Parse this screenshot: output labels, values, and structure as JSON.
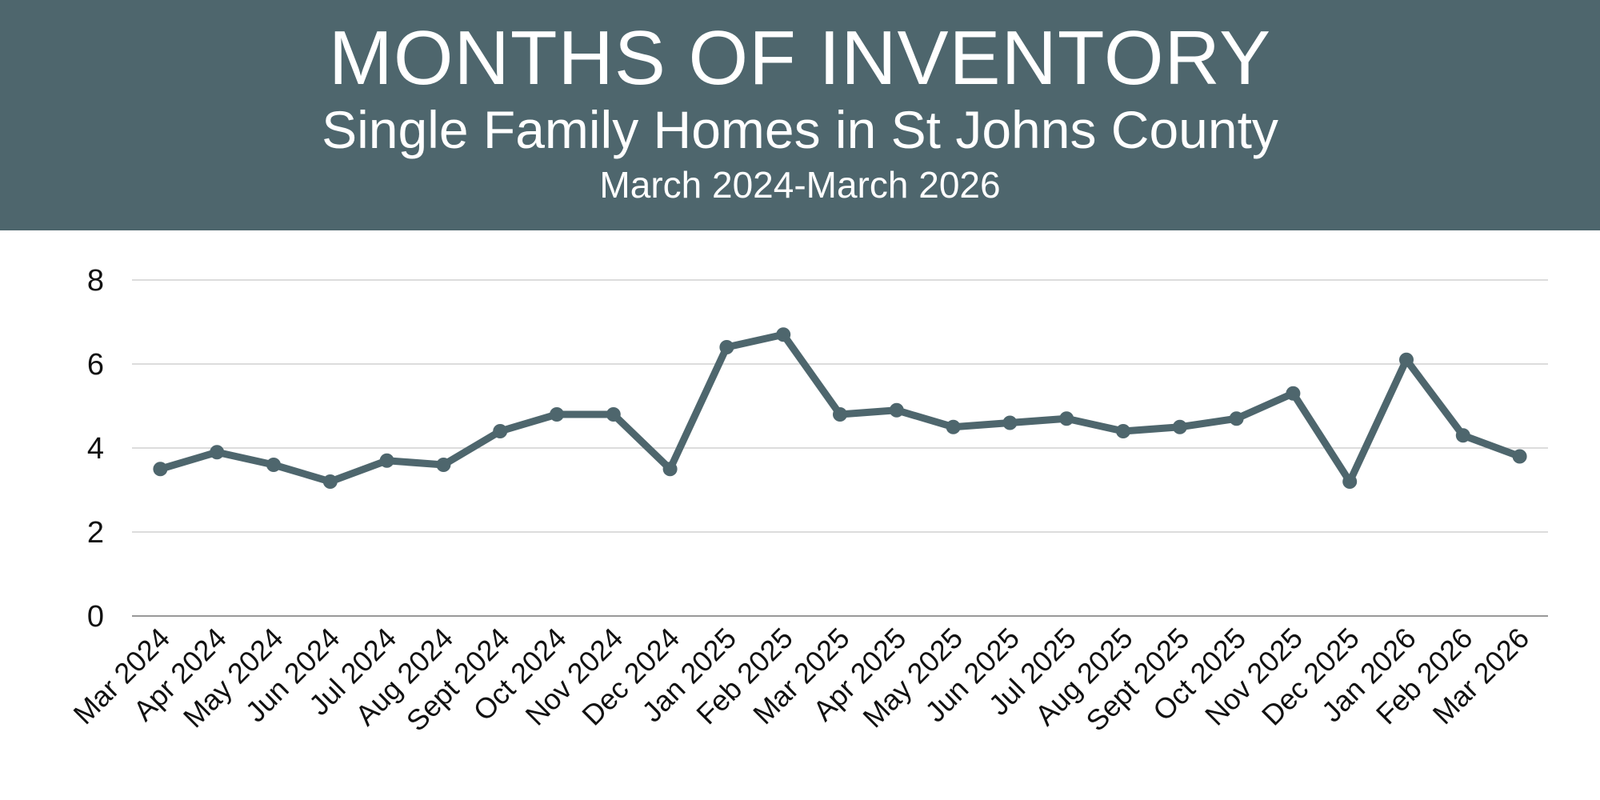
{
  "header": {
    "title": "MONTHS OF INVENTORY",
    "subtitle": "Single Family Homes in St Johns County",
    "date_range": "March 2024-March 2026"
  },
  "colors": {
    "header_background": "#4e666d",
    "header_text": "#ffffff",
    "series_line": "#4e666d",
    "gridline": "#d0d0d0",
    "axis_line": "#999999"
  },
  "chart_data": {
    "type": "line",
    "title": "MONTHS OF INVENTORY",
    "subtitle": "Single Family Homes in St Johns County",
    "xlabel": "",
    "ylabel": "",
    "ylim": [
      0,
      8
    ],
    "yticks": [
      0,
      2,
      4,
      6,
      8
    ],
    "grid": true,
    "legend": "none",
    "categories": [
      "Mar 2024",
      "Apr 2024",
      "May 2024",
      "Jun 2024",
      "Jul 2024",
      "Aug 2024",
      "Sept 2024",
      "Oct 2024",
      "Nov 2024",
      "Dec 2024",
      "Jan 2025",
      "Feb 2025",
      "Mar 2025",
      "Apr 2025",
      "May 2025",
      "Jun 2025",
      "Jul 2025",
      "Aug 2025",
      "Sept 2025",
      "Oct 2025",
      "Nov 2025",
      "Dec 2025",
      "Jan 2026",
      "Feb 2026",
      "Mar 2026"
    ],
    "series": [
      {
        "values": [
          3.5,
          3.9,
          3.6,
          3.2,
          3.7,
          3.6,
          4.4,
          4.8,
          4.8,
          3.5,
          6.4,
          6.7,
          4.8,
          4.9,
          4.5,
          4.6,
          4.7,
          4.4,
          4.5,
          4.7,
          5.3,
          3.2,
          6.1,
          4.3,
          3.8
        ]
      }
    ]
  }
}
